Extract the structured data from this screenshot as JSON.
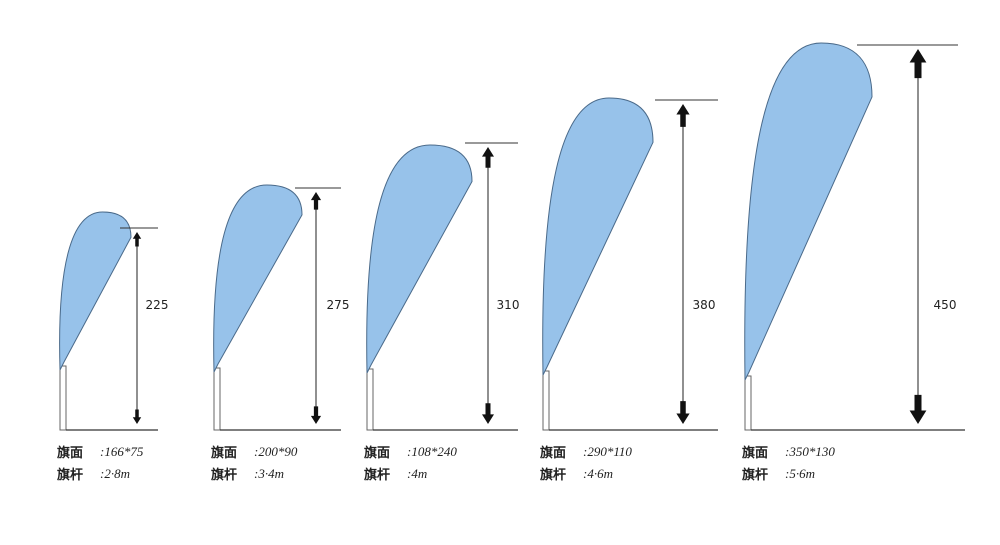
{
  "flags": [
    {
      "height": "225",
      "face_label": "旗面",
      "face": ":166*75",
      "pole_label": "旗杆",
      "pole": ":2·8m"
    },
    {
      "height": "275",
      "face_label": "旗面",
      "face": ":200*90",
      "pole_label": "旗杆",
      "pole": ":3·4m"
    },
    {
      "height": "310",
      "face_label": "旗面",
      "face": ":108*240",
      "pole_label": "旗杆",
      "pole": ":4m"
    },
    {
      "height": "380",
      "face_label": "旗面",
      "face": ":290*110",
      "pole_label": "旗杆",
      "pole": ":4·6m"
    },
    {
      "height": "450",
      "face_label": "旗面",
      "face": ":350*130",
      "pole_label": "旗杆",
      "pole": ":5·6m"
    }
  ]
}
